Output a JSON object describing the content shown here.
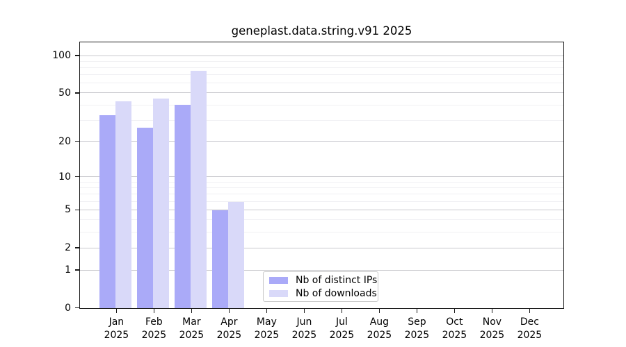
{
  "chart_data": {
    "type": "bar",
    "title": "geneplast.data.string.v91 2025",
    "categories": [
      "Jan",
      "Feb",
      "Mar",
      "Apr",
      "May",
      "Jun",
      "Jul",
      "Aug",
      "Sep",
      "Oct",
      "Nov",
      "Dec"
    ],
    "x_year": "2025",
    "series": [
      {
        "name": "Nb of distinct IPs",
        "color": "#aaaaf8",
        "values": [
          33,
          26,
          40,
          5,
          0,
          0,
          0,
          0,
          0,
          0,
          0,
          0
        ]
      },
      {
        "name": "Nb of downloads",
        "color": "#d9d9f9",
        "values": [
          43,
          45,
          76,
          6,
          0,
          0,
          0,
          0,
          0,
          0,
          0,
          0
        ]
      }
    ],
    "y_axis": {
      "scale": "log1p",
      "major_ticks": [
        0,
        1,
        2,
        5,
        10,
        20,
        50,
        100
      ],
      "minor_ticks": [
        3,
        4,
        6,
        7,
        8,
        9,
        30,
        40,
        60,
        70,
        80,
        90
      ],
      "ylim": [
        0,
        127
      ]
    },
    "xlabel": "",
    "ylabel": "",
    "grid": "horizontal",
    "legend_position": "bottom-center"
  }
}
